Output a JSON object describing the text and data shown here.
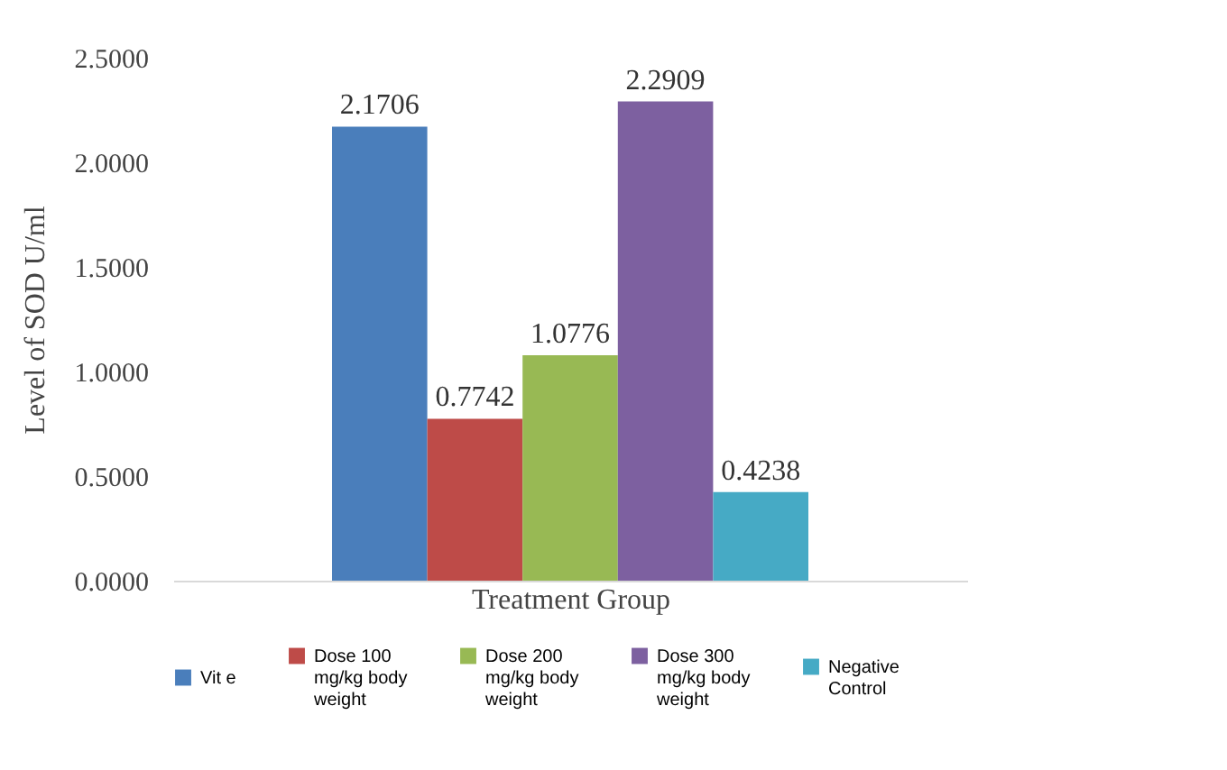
{
  "chart_data": {
    "type": "bar",
    "xlabel": "Treatment Group",
    "ylabel": "Level of SOD U/ml",
    "categories": [
      null
    ],
    "series": [
      {
        "name": "Vit e",
        "color": "#4a7ebb",
        "values": [
          2.1706
        ]
      },
      {
        "name": "Dose 100 mg/kg body weight",
        "color": "#be4b48",
        "values": [
          0.7742
        ]
      },
      {
        "name": "Dose 200 mg/kg body weight",
        "color": "#98b954",
        "values": [
          1.0776
        ]
      },
      {
        "name": "Dose 300 mg/kg body weight",
        "color": "#7d60a0",
        "values": [
          2.2909
        ]
      },
      {
        "name": "Negative Control",
        "color": "#46aac5",
        "values": [
          0.4238
        ]
      }
    ],
    "ylim": [
      0,
      2.5
    ],
    "yticks": [
      {
        "value": 0,
        "label": "0.0000"
      },
      {
        "value": 0.5,
        "label": "0.5000"
      },
      {
        "value": 1,
        "label": "1.0000"
      },
      {
        "value": 1.5,
        "label": "1.5000"
      },
      {
        "value": 2,
        "label": "2.0000"
      },
      {
        "value": 2.5,
        "label": "2.5000"
      }
    ],
    "data_labels": true,
    "legend": "bottom",
    "tick_labels": "y"
  }
}
